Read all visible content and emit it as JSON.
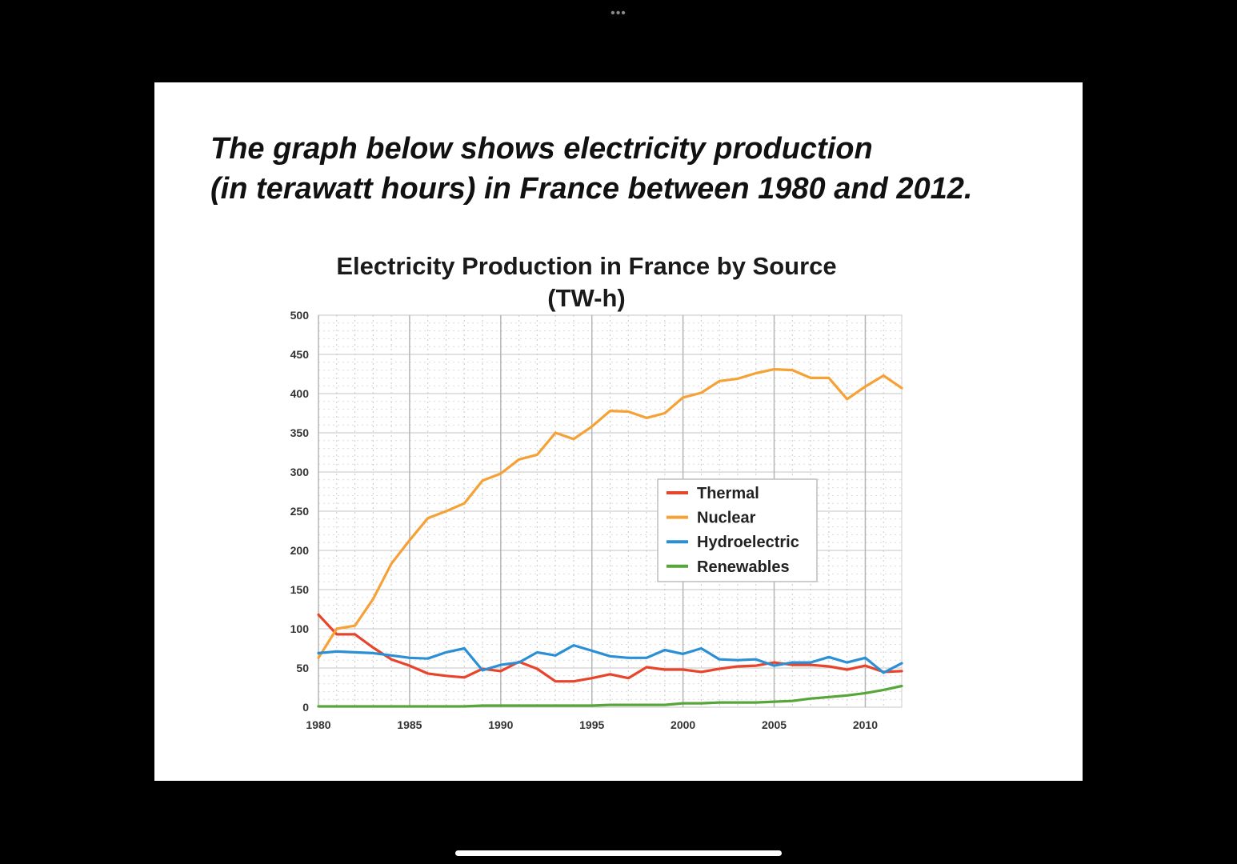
{
  "window": {
    "dots": "•••"
  },
  "slide": {
    "heading_line1": "The graph below shows electricity production",
    "heading_line2": "(in terawatt hours) in France between 1980 and 2012."
  },
  "chart_data": {
    "type": "line",
    "title": "Electricity Production in France by Source",
    "subtitle": "(TW-h)",
    "xlabel": "",
    "ylabel": "",
    "xlim": [
      1980,
      2012
    ],
    "ylim": [
      0,
      500
    ],
    "x_ticks": [
      1980,
      1985,
      1990,
      1995,
      2000,
      2005,
      2010
    ],
    "y_ticks": [
      0,
      50,
      100,
      150,
      200,
      250,
      300,
      350,
      400,
      450,
      500
    ],
    "grid": true,
    "legend_position": "center-right",
    "x": [
      1980,
      1981,
      1982,
      1983,
      1984,
      1985,
      1986,
      1987,
      1988,
      1989,
      1990,
      1991,
      1992,
      1993,
      1994,
      1995,
      1996,
      1997,
      1998,
      1999,
      2000,
      2001,
      2002,
      2003,
      2004,
      2005,
      2006,
      2007,
      2008,
      2009,
      2010,
      2011,
      2012
    ],
    "series": [
      {
        "name": "Thermal",
        "color": "#e8442b",
        "values": [
          118,
          93,
          93,
          76,
          61,
          53,
          43,
          40,
          38,
          49,
          46,
          58,
          49,
          33,
          33,
          37,
          42,
          37,
          51,
          48,
          48,
          45,
          49,
          52,
          53,
          57,
          54,
          54,
          52,
          48,
          53,
          45,
          46
        ]
      },
      {
        "name": "Nuclear",
        "color": "#f5a136",
        "values": [
          63,
          100,
          104,
          138,
          183,
          213,
          241,
          250,
          260,
          289,
          298,
          316,
          322,
          350,
          342,
          358,
          378,
          377,
          369,
          375,
          395,
          401,
          416,
          419,
          426,
          431,
          430,
          420,
          420,
          393,
          409,
          423,
          407
        ]
      },
      {
        "name": "Hydroelectric",
        "color": "#2b8fd6",
        "values": [
          69,
          71,
          70,
          69,
          66,
          63,
          62,
          70,
          75,
          47,
          54,
          57,
          70,
          66,
          79,
          72,
          65,
          63,
          63,
          73,
          68,
          75,
          61,
          60,
          61,
          53,
          57,
          57,
          64,
          57,
          63,
          44,
          56
        ]
      },
      {
        "name": "Renewables",
        "color": "#57a63a",
        "values": [
          1,
          1,
          1,
          1,
          1,
          1,
          1,
          1,
          1,
          2,
          2,
          2,
          2,
          2,
          2,
          2,
          3,
          3,
          3,
          3,
          5,
          5,
          6,
          6,
          6,
          7,
          8,
          11,
          13,
          15,
          18,
          22,
          27
        ]
      }
    ]
  }
}
